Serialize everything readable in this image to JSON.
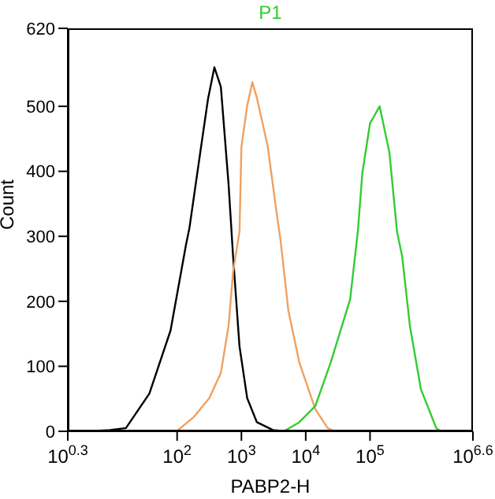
{
  "chart_data": {
    "type": "line",
    "title": "P1",
    "xlabel": "PABP2-H",
    "ylabel": "Count",
    "log": "x",
    "xlim": [
      1.995,
      3981000
    ],
    "xticks": [
      {
        "value": 1.995,
        "label": "10$^{0.3}$"
      },
      {
        "value": 100,
        "label": "10$^{2}$"
      },
      {
        "value": 1000,
        "label": "10$^{3}$"
      },
      {
        "value": 10000,
        "label": "10$^{4}$"
      },
      {
        "value": 100000,
        "label": "10$^{5}$"
      },
      {
        "value": 3981000,
        "label": "10$^{6.6}$"
      }
    ],
    "ylim": [
      0,
      620
    ],
    "yticks": [
      0,
      100,
      200,
      300,
      400,
      500,
      620
    ],
    "series": [
      {
        "color": "#000000",
        "x": [
          4,
          9,
          16,
          37,
          79,
          138,
          155,
          229,
          302,
          380,
          479,
          631,
          741,
          933,
          1230,
          1740,
          3090,
          5010
        ],
        "values": [
          0,
          2,
          5,
          58,
          155,
          288,
          312,
          429,
          511,
          560,
          530,
          380,
          270,
          131,
          51,
          14,
          2,
          0
        ]
      },
      {
        "color": "#f0a060",
        "x": [
          98,
          182,
          316,
          479,
          631,
          741,
          933,
          1000,
          1230,
          1480,
          1740,
          2570,
          3470,
          4070,
          5370,
          7940,
          14100,
          21900,
          28200
        ],
        "values": [
          0,
          22,
          51,
          90,
          162,
          245,
          307,
          438,
          501,
          537,
          513,
          438,
          341,
          293,
          186,
          106,
          34,
          5,
          0
        ]
      },
      {
        "color": "#33cc33",
        "x": [
          4570,
          7940,
          14100,
          24500,
          49000,
          64600,
          75900,
          100000,
          141000,
          200000,
          263000,
          316000,
          417000,
          617000,
          1070000,
          1260000
        ],
        "values": [
          0,
          14,
          39,
          106,
          203,
          307,
          397,
          474,
          500,
          429,
          307,
          269,
          162,
          65,
          5,
          0
        ]
      }
    ]
  }
}
